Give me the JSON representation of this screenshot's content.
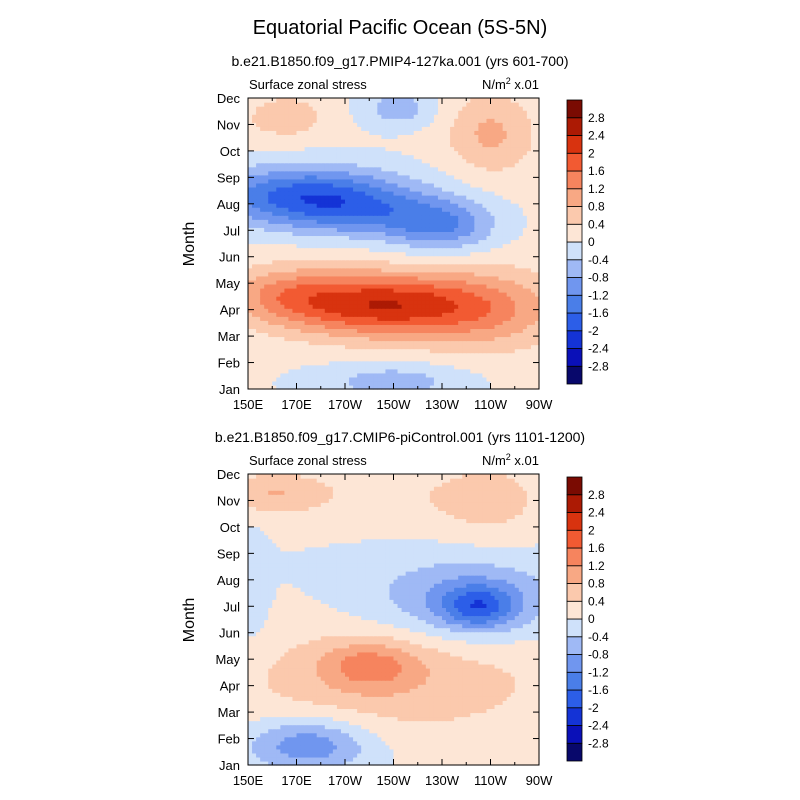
{
  "figure": {
    "title": "Equatorial Pacific Ocean (5S-5N)"
  },
  "colorbar": {
    "levels": [
      -2.8,
      -2.4,
      -2,
      -1.6,
      -1.2,
      -0.8,
      -0.4,
      0,
      0.4,
      0.8,
      1.2,
      1.6,
      2,
      2.4,
      2.8
    ],
    "labels": [
      "-2.8",
      "-2.4",
      "-2",
      "-1.6",
      "-1.2",
      "-0.8",
      "-0.4",
      "0",
      "0.4",
      "0.8",
      "1.2",
      "1.6",
      "2",
      "2.4",
      "2.8"
    ],
    "colors": [
      "#08086b",
      "#0a10b8",
      "#1433d6",
      "#2c5ee8",
      "#4a7ee8",
      "#7096ef",
      "#9fb9f5",
      "#cfe1fa",
      "#fde6d6",
      "#fbc9ad",
      "#f8a884",
      "#f6845e",
      "#f25a32",
      "#d8330f",
      "#ac1a04",
      "#7a0b02"
    ]
  },
  "chart_data": [
    {
      "type": "heatmap",
      "title": "b.e21.B1850.f09_g17.PMIP4-127ka.001 (yrs 601-700)",
      "left_label": "Surface zonal stress",
      "units_label": "N/m",
      "units_exp": "2",
      "units_scale": " x.01",
      "ylabel": "Month",
      "xlabel": "",
      "x_ticks": [
        "150E",
        "170E",
        "170W",
        "150W",
        "130W",
        "110W",
        "90W"
      ],
      "x_values": [
        150,
        170,
        190,
        210,
        230,
        250,
        270
      ],
      "xlim": [
        150,
        270
      ],
      "y_ticks": [
        "Jan",
        "Feb",
        "Mar",
        "Apr",
        "May",
        "Jun",
        "Jul",
        "Aug",
        "Sep",
        "Oct",
        "Nov",
        "Dec"
      ],
      "y_values": [
        1,
        2,
        3,
        4,
        5,
        6,
        7,
        8,
        9,
        10,
        11,
        12
      ],
      "ylim": [
        1,
        12
      ],
      "features": [
        {
          "kind": "blob",
          "x": 270,
          "y": 6.5,
          "rx": 140,
          "ry": 12,
          "amp": 0.1
        },
        {
          "kind": "blob",
          "x": 205,
          "y": 4.2,
          "rx": 40,
          "ry": 1.2,
          "amp": 2.2
        },
        {
          "kind": "blob",
          "x": 250,
          "y": 4.0,
          "rx": 30,
          "ry": 1.5,
          "amp": 0.9
        },
        {
          "kind": "blob",
          "x": 165,
          "y": 4.6,
          "rx": 25,
          "ry": 1.1,
          "amp": 0.9
        },
        {
          "kind": "blob",
          "x": 175,
          "y": 8.3,
          "rx": 40,
          "ry": 1.1,
          "amp": -1.9
        },
        {
          "kind": "blob",
          "x": 230,
          "y": 7.2,
          "rx": 22,
          "ry": 1.0,
          "amp": -1.2
        },
        {
          "kind": "blob",
          "x": 200,
          "y": 7.6,
          "rx": 30,
          "ry": 0.9,
          "amp": -0.7
        },
        {
          "kind": "blob",
          "x": 210,
          "y": 1.3,
          "rx": 30,
          "ry": 0.7,
          "amp": -0.7
        },
        {
          "kind": "blob",
          "x": 250,
          "y": 10.7,
          "rx": 18,
          "ry": 1.5,
          "amp": 0.8
        },
        {
          "kind": "blob",
          "x": 165,
          "y": 11.3,
          "rx": 18,
          "ry": 0.9,
          "amp": 0.6
        },
        {
          "kind": "blob",
          "x": 212,
          "y": 11.6,
          "rx": 15,
          "ry": 0.7,
          "amp": -0.7
        }
      ]
    },
    {
      "type": "heatmap",
      "title": "b.e21.B1850.f09_g17.CMIP6-piControl.001 (yrs 1101-1200)",
      "left_label": "Surface zonal stress",
      "units_label": "N/m",
      "units_exp": "2",
      "units_scale": " x.01",
      "ylabel": "Month",
      "xlabel": "",
      "x_ticks": [
        "150E",
        "170E",
        "170W",
        "150W",
        "130W",
        "110W",
        "90W"
      ],
      "x_values": [
        150,
        170,
        190,
        210,
        230,
        250,
        270
      ],
      "xlim": [
        150,
        270
      ],
      "y_ticks": [
        "Jan",
        "Feb",
        "Mar",
        "Apr",
        "May",
        "Jun",
        "Jul",
        "Aug",
        "Sep",
        "Oct",
        "Nov",
        "Dec"
      ],
      "y_values": [
        1,
        2,
        3,
        4,
        5,
        6,
        7,
        8,
        9,
        10,
        11,
        12
      ],
      "ylim": [
        1,
        12
      ],
      "features": [
        {
          "kind": "blob",
          "x": 210,
          "y": 4.2,
          "rx": 70,
          "ry": 2.2,
          "amp": 0.7
        },
        {
          "kind": "blob",
          "x": 200,
          "y": 4.8,
          "rx": 20,
          "ry": 0.9,
          "amp": 0.9
        },
        {
          "kind": "blob",
          "x": 240,
          "y": 7.3,
          "rx": 40,
          "ry": 1.6,
          "amp": -0.9
        },
        {
          "kind": "blob",
          "x": 245,
          "y": 7.0,
          "rx": 15,
          "ry": 0.8,
          "amp": -1.3
        },
        {
          "kind": "blob",
          "x": 175,
          "y": 1.8,
          "rx": 25,
          "ry": 1.0,
          "amp": -1.2
        },
        {
          "kind": "blob",
          "x": 160,
          "y": 11.3,
          "rx": 20,
          "ry": 0.8,
          "amp": 0.7
        },
        {
          "kind": "blob",
          "x": 250,
          "y": 11.0,
          "rx": 25,
          "ry": 1.6,
          "amp": 0.55
        },
        {
          "kind": "blob",
          "x": 200,
          "y": 11.2,
          "rx": 40,
          "ry": 1.2,
          "amp": 0.3
        },
        {
          "kind": "blob",
          "x": 152,
          "y": 7.5,
          "rx": 6,
          "ry": 2.0,
          "amp": -0.35
        }
      ]
    }
  ]
}
